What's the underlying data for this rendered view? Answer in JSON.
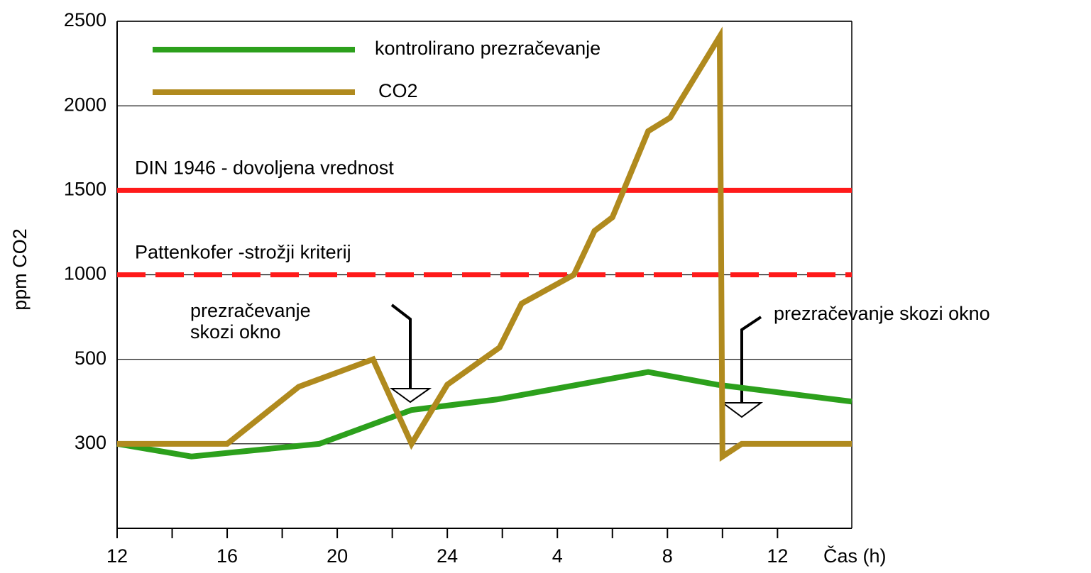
{
  "chart_data": {
    "type": "line",
    "ylabel": "ppm CO2",
    "xlabel": "Čas (h)",
    "xlim": [
      12,
      38.7
    ],
    "xticks": [
      12,
      16,
      20,
      24,
      {
        "value": 28,
        "label": "4"
      },
      {
        "value": 32,
        "label": "8"
      },
      {
        "value": 36,
        "label": "12"
      }
    ],
    "xminor_ticks": [
      14,
      18,
      22,
      26,
      30,
      34
    ],
    "ylim": [
      100,
      2500
    ],
    "yticks": [
      300,
      500,
      1000,
      1500,
      2000,
      2500
    ],
    "grid": true,
    "legend": "upper left",
    "series": [
      {
        "name": "kontrolirano prezračevanje",
        "color": "#2ca01c",
        "x": [
          12,
          14.7,
          19.35,
          22.7,
          25.8,
          31.3,
          33.8,
          38.7
        ],
        "values": [
          300,
          270,
          300,
          380,
          405,
          470,
          440,
          400
        ]
      },
      {
        "name": "CO2",
        "color": "#b08a1e",
        "x": [
          12,
          16,
          18.6,
          21.3,
          22.7,
          24,
          25.9,
          26.7,
          28.6,
          29.35,
          30,
          31.3,
          32.1,
          33.9,
          34,
          34.7,
          38.7
        ],
        "values": [
          300,
          300,
          435,
          500,
          300,
          440,
          570,
          830,
          1000,
          1260,
          1340,
          1850,
          1930,
          2410,
          270,
          300,
          300
        ]
      }
    ],
    "reference_lines": [
      {
        "value": 1500,
        "label": "DIN 1946 - dovoljena vrednost",
        "color": "#ff1a1a",
        "style": "solid"
      },
      {
        "value": 1000,
        "label": "Pattenkofer -strožji kriterij",
        "color": "#ff1a1a",
        "style": "dashed"
      }
    ],
    "annotations": [
      {
        "lines": [
          "prezračevanje",
          "skozi okno"
        ]
      },
      {
        "lines": [
          "prezračevanje skozi okno"
        ]
      }
    ]
  }
}
